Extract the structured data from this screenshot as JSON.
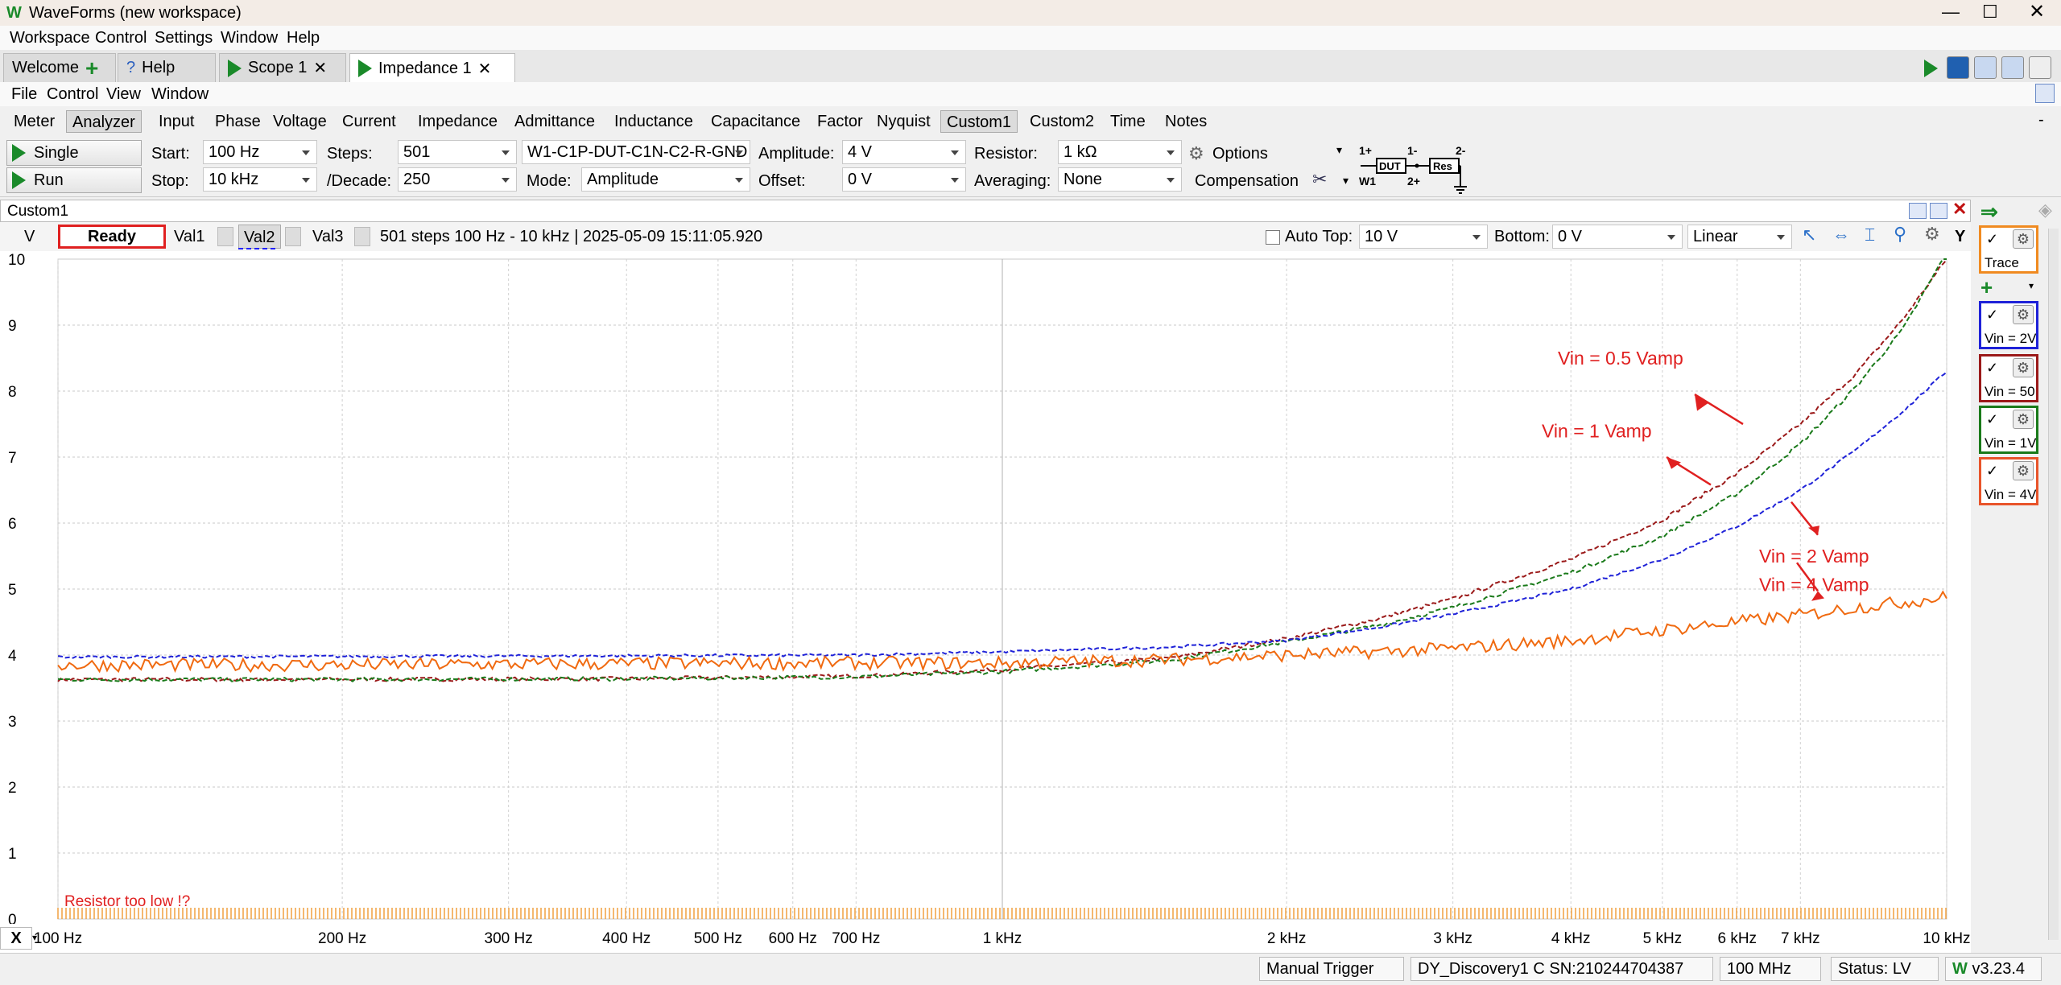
{
  "app": {
    "title": "WaveForms (new workspace)",
    "menu": [
      "Workspace",
      "Control",
      "Settings",
      "Window",
      "Help"
    ]
  },
  "workspace_tabs": [
    {
      "label": "Welcome"
    },
    {
      "label": "Help"
    },
    {
      "label": "Scope 1"
    },
    {
      "label": "Impedance 1"
    }
  ],
  "tool_menu": [
    "File",
    "Control",
    "View",
    "Window"
  ],
  "sub_tabs": [
    "Meter",
    "Analyzer",
    "Input",
    "Phase",
    "Voltage",
    "Current",
    "Impedance",
    "Admittance",
    "Inductance",
    "Capacitance",
    "Factor",
    "Nyquist",
    "Custom1",
    "Custom2",
    "Time",
    "Notes"
  ],
  "selected_sub_tabs": [
    "Analyzer",
    "Custom1"
  ],
  "controls": {
    "single_label": "Single",
    "run_label": "Run",
    "start_label": "Start:",
    "start_value": "100 Hz",
    "stop_label": "Stop:",
    "stop_value": "10 kHz",
    "steps_label": "Steps:",
    "steps_value": "501",
    "decade_label": "/Decade:",
    "decade_value": "250",
    "config_value": "W1-C1P-DUT-C1N-C2-R-GND",
    "mode_label": "Mode:",
    "mode_value": "Amplitude",
    "amplitude_label": "Amplitude:",
    "amplitude_value": "4 V",
    "offset_label": "Offset:",
    "offset_value": "0 V",
    "resistor_label": "Resistor:",
    "resistor_value": "1 kΩ",
    "averaging_label": "Averaging:",
    "averaging_value": "None",
    "options_label": "Options",
    "compensation_label": "Compensation",
    "circuit": {
      "p1": "1+",
      "n1": "1-",
      "n2": "2-",
      "p2": "2+",
      "w1": "W1",
      "dut": "DUT",
      "res": "Res"
    }
  },
  "view": {
    "title": "Custom1",
    "y_unit": "V",
    "status": "Ready",
    "value_tabs": [
      "Val1",
      "Val2",
      "Val3"
    ],
    "info": "501 steps 100 Hz - 10 kHz | 2025-05-09 15:11:05.920",
    "auto_top_label": "Auto Top:",
    "top_value": "10 V",
    "bottom_label": "Bottom:",
    "bottom_value": "0 V",
    "scale_value": "Linear",
    "y_axis_btn": "Y",
    "x_axis_btn": "X",
    "warning": "Resistor too low !?"
  },
  "traces": [
    {
      "label": "Trace",
      "color": "#f08a20"
    },
    {
      "label": "Vin = 2V",
      "color": "#1f22d8"
    },
    {
      "label": "Vin = 50",
      "color": "#9b1a1a"
    },
    {
      "label": "Vin = 1V",
      "color": "#1a7a1a"
    },
    {
      "label": "Vin = 4V",
      "color": "#e8542a"
    }
  ],
  "status_bar": {
    "trigger": "Manual Trigger",
    "device": "DY_Discovery1 C SN:210244704387",
    "freq": "100 MHz",
    "status": "Status: LV",
    "version": "v3.23.4"
  },
  "chart_data": {
    "type": "line",
    "xscale": "log",
    "xlim": [
      100,
      10000
    ],
    "ylim": [
      0,
      10
    ],
    "yticks": [
      0,
      1,
      2,
      3,
      4,
      5,
      6,
      7,
      8,
      9,
      10
    ],
    "xtick_labels": [
      {
        "x": 100,
        "label": "100 Hz"
      },
      {
        "x": 200,
        "label": "200 Hz"
      },
      {
        "x": 300,
        "label": "300 Hz"
      },
      {
        "x": 400,
        "label": "400 Hz"
      },
      {
        "x": 500,
        "label": "500 Hz"
      },
      {
        "x": 600,
        "label": "600 Hz"
      },
      {
        "x": 700,
        "label": "700 Hz"
      },
      {
        "x": 1000,
        "label": "1 kHz"
      },
      {
        "x": 2000,
        "label": "2 kHz"
      },
      {
        "x": 3000,
        "label": "3 kHz"
      },
      {
        "x": 4000,
        "label": "4 kHz"
      },
      {
        "x": 5000,
        "label": "5 kHz"
      },
      {
        "x": 6000,
        "label": "6 kHz"
      },
      {
        "x": 7000,
        "label": "7 kHz"
      },
      {
        "x": 10000,
        "label": "10 kHz"
      }
    ],
    "grid": true,
    "series": [
      {
        "name": "Vin = 0.5 Vamp",
        "color": "#9b1a1a",
        "dash": "6,3",
        "noise": 0.03,
        "x": [
          100,
          200,
          400,
          700,
          1000,
          1500,
          2000,
          2500,
          3000,
          4000,
          5000,
          6000,
          7000,
          8000,
          9000,
          10000
        ],
        "y": [
          3.63,
          3.63,
          3.64,
          3.68,
          3.78,
          3.95,
          4.25,
          4.55,
          4.85,
          5.45,
          6.05,
          6.75,
          7.5,
          8.25,
          9.1,
          10.0
        ]
      },
      {
        "name": "Vin = 1 Vamp",
        "color": "#1a7a1a",
        "dash": "6,3",
        "noise": 0.03,
        "x": [
          100,
          200,
          400,
          700,
          1000,
          1500,
          2000,
          2500,
          3000,
          4000,
          5000,
          6000,
          7000,
          8000,
          9000,
          10000
        ],
        "y": [
          3.63,
          3.63,
          3.64,
          3.67,
          3.75,
          3.92,
          4.2,
          4.45,
          4.72,
          5.25,
          5.8,
          6.45,
          7.2,
          8.05,
          8.95,
          10.1
        ]
      },
      {
        "name": "Vin = 2 Vamp",
        "color": "#1f22d8",
        "dash": "6,3",
        "noise": 0.02,
        "x": [
          100,
          200,
          400,
          700,
          1000,
          1500,
          2000,
          2500,
          3000,
          4000,
          5000,
          6000,
          7000,
          8000,
          9000,
          10000
        ],
        "y": [
          3.97,
          3.98,
          3.99,
          4.0,
          4.05,
          4.12,
          4.22,
          4.42,
          4.62,
          5.0,
          5.45,
          5.95,
          6.5,
          7.1,
          7.7,
          8.3
        ]
      },
      {
        "name": "Vin = 4 Vamp",
        "color": "#f06a10",
        "dash": "",
        "noise": 0.1,
        "x": [
          100,
          200,
          400,
          700,
          1000,
          1500,
          2000,
          2500,
          3000,
          4000,
          5000,
          6000,
          7000,
          8000,
          9000,
          10000
        ],
        "y": [
          3.85,
          3.85,
          3.87,
          3.88,
          3.88,
          3.93,
          4.0,
          4.05,
          4.1,
          4.22,
          4.38,
          4.5,
          4.6,
          4.72,
          4.8,
          4.88
        ]
      }
    ],
    "annotations": [
      {
        "text": "Vin = 0.5 Vamp",
        "tx": 1370,
        "ty": 7.08,
        "ax": 1420,
        "ay": 8.0,
        "bx": 1310,
        "by": 8.3,
        "label_series": 0
      },
      {
        "text": "Vin = 1 Vamp",
        "tx": 1250,
        "ty": 6.55,
        "ax": 1380,
        "ay": 6.6,
        "bx": 1250,
        "by": 7.0,
        "label_series": 1
      },
      {
        "text": "Vin = 2 Vamp",
        "tx": 1410,
        "ty": 6.25,
        "ax": 1440,
        "ay": 5.65,
        "bx": 1450,
        "by": 5.75,
        "label_series": 2
      },
      {
        "text": "Vin = 4 Vamp",
        "tx": 1375,
        "ty": 4.4,
        "ax": 1400,
        "ay": 4.65,
        "bx": 1410,
        "by": 5.1,
        "label_series": 3
      }
    ]
  }
}
